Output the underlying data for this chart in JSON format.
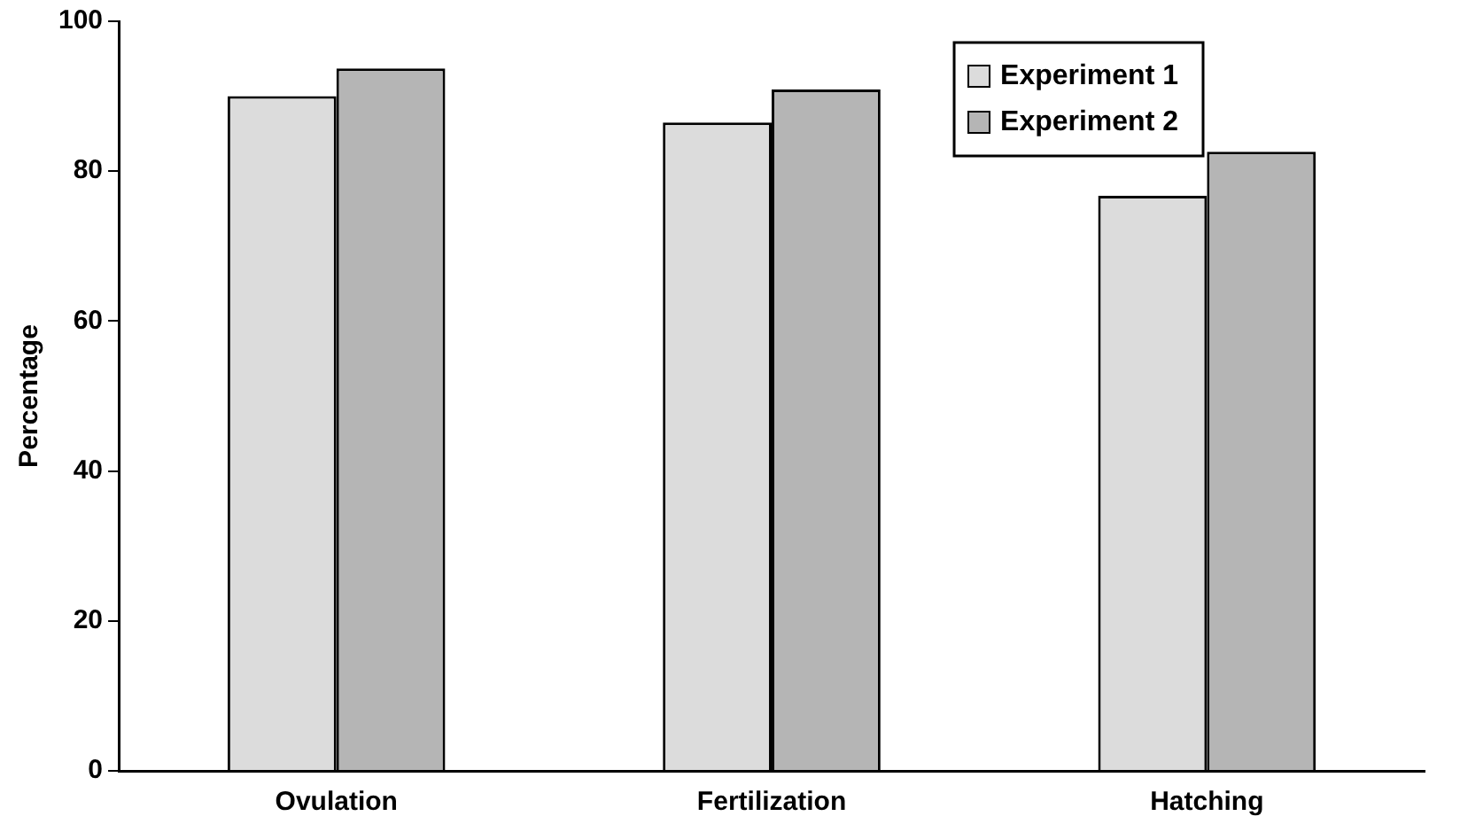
{
  "chart_data": {
    "type": "bar",
    "ylabel": "Percentage",
    "categories": [
      "Ovulation",
      "Fertilization",
      "Hatching"
    ],
    "series": [
      {
        "name": "Experiment 1",
        "color": "#dcdcdc",
        "values": [
          90,
          86.5,
          76.7
        ]
      },
      {
        "name": "Experiment 2",
        "color": "#b5b5b5",
        "values": [
          93.7,
          90.9,
          82.6
        ]
      }
    ],
    "ylim": [
      0,
      100
    ],
    "yticks": [
      0,
      20,
      40,
      60,
      80,
      100
    ],
    "grid": false,
    "legend": "top right"
  }
}
